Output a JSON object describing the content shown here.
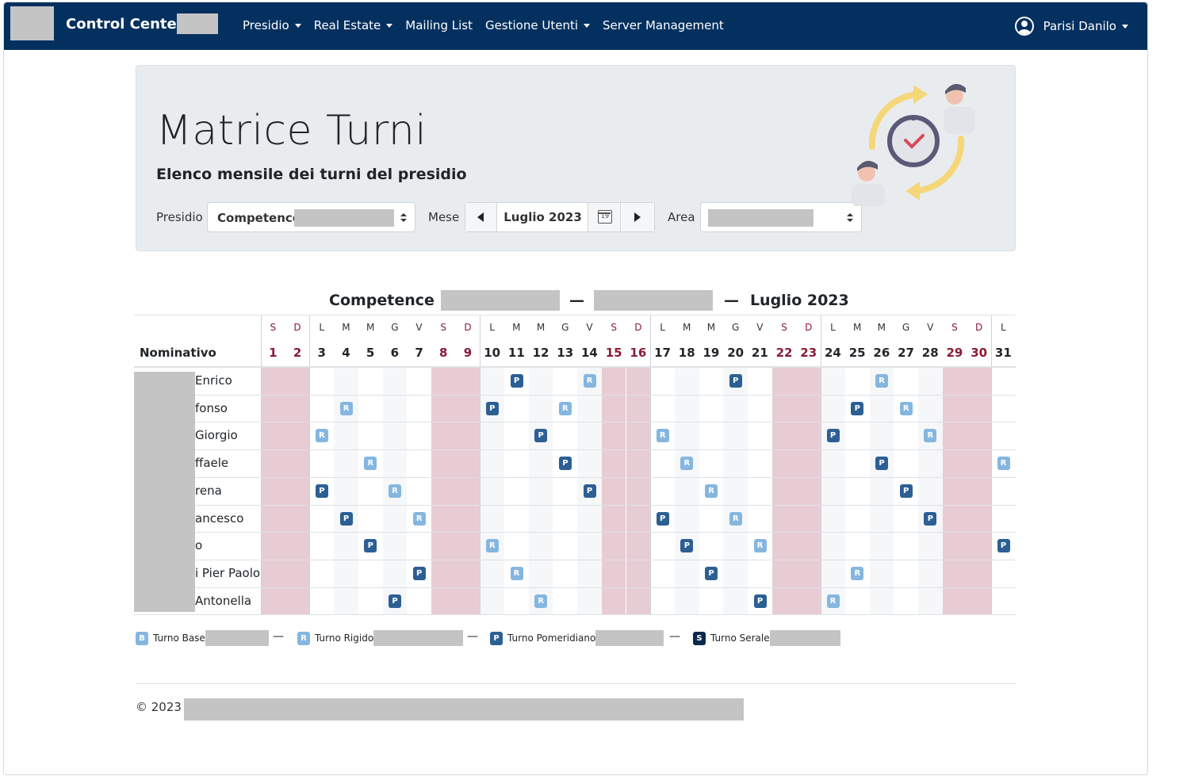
{
  "navbar": {
    "brand": "Control Center",
    "menu": [
      {
        "label": "Presidio",
        "dropdown": true
      },
      {
        "label": "Real Estate",
        "dropdown": true
      },
      {
        "label": "Mailing List",
        "dropdown": false
      },
      {
        "label": "Gestione Utenti",
        "dropdown": true
      },
      {
        "label": "Server Management",
        "dropdown": false
      }
    ],
    "user": "Parisi Danilo",
    "bg_color": "#04305f"
  },
  "header": {
    "title": "Matrice Turni",
    "subtitle": "Elenco mensile dei turni del presidio"
  },
  "filters": {
    "presidio_label": "Presidio",
    "presidio_value": "Competence",
    "mese_label": "Mese",
    "mese_value": "Luglio 2023",
    "calendar_icon_text": "19",
    "area_label": "Area"
  },
  "table": {
    "title_prefix": "Competence",
    "title_sep": "—",
    "title_month": "Luglio 2023",
    "nominativo_header": "Nominativo",
    "weekdays": [
      "S",
      "D",
      "L",
      "M",
      "M",
      "G",
      "V",
      "S",
      "D",
      "L",
      "M",
      "M",
      "G",
      "V",
      "S",
      "D",
      "L",
      "M",
      "M",
      "G",
      "V",
      "S",
      "D",
      "L",
      "M",
      "M",
      "G",
      "V",
      "S",
      "D",
      "L"
    ],
    "days": [
      "1",
      "2",
      "3",
      "4",
      "5",
      "6",
      "7",
      "8",
      "9",
      "10",
      "11",
      "12",
      "13",
      "14",
      "15",
      "16",
      "17",
      "18",
      "19",
      "20",
      "21",
      "22",
      "23",
      "24",
      "25",
      "26",
      "27",
      "28",
      "29",
      "30",
      "31"
    ],
    "weekend_days": [
      1,
      2,
      8,
      9,
      15,
      16,
      22,
      23,
      29,
      30
    ],
    "rows": [
      {
        "name": "Enrico",
        "shifts": {
          "11": "P",
          "14": "R",
          "20": "P",
          "26": "R"
        }
      },
      {
        "name": "fonso",
        "shifts": {
          "4": "R",
          "10": "P",
          "13": "R",
          "25": "P",
          "27": "R"
        }
      },
      {
        "name": "Giorgio",
        "shifts": {
          "3": "R",
          "12": "P",
          "17": "R",
          "24": "P",
          "28": "R"
        }
      },
      {
        "name": "ffaele",
        "shifts": {
          "5": "R",
          "13": "P",
          "18": "R",
          "26": "P",
          "31": "R"
        }
      },
      {
        "name": "rena",
        "shifts": {
          "3": "P",
          "6": "R",
          "14": "P",
          "19": "R",
          "27": "P"
        }
      },
      {
        "name": "ancesco",
        "shifts": {
          "4": "P",
          "7": "R",
          "17": "P",
          "20": "R",
          "28": "P"
        }
      },
      {
        "name": "o",
        "shifts": {
          "5": "P",
          "10": "R",
          "18": "P",
          "21": "R",
          "31": "P"
        }
      },
      {
        "name": "i Pier Paolo",
        "shifts": {
          "7": "P",
          "11": "R",
          "19": "P",
          "25": "R"
        }
      },
      {
        "name": "Antonella",
        "shifts": {
          "6": "P",
          "12": "R",
          "21": "P",
          "24": "R"
        }
      }
    ]
  },
  "legend": [
    {
      "code": "B",
      "label": "Turno Base",
      "color": "#85b6e0"
    },
    {
      "code": "R",
      "label": "Turno Rigido",
      "color": "#85b6e0"
    },
    {
      "code": "P",
      "label": "Turno Pomeridiano",
      "color": "#2c5f93"
    },
    {
      "code": "S",
      "label": "Turno Serale",
      "color": "#0b2a4b"
    }
  ],
  "legend_sep": "—",
  "footer": {
    "text": "© 2023 -"
  }
}
